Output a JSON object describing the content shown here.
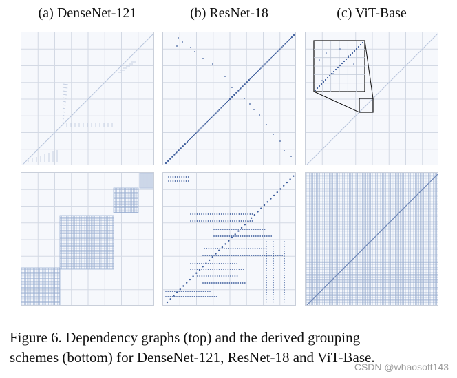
{
  "panels": {
    "a": {
      "title": "(a) DenseNet-121"
    },
    "b": {
      "title": "(b) ResNet-18"
    },
    "c": {
      "title": "(c) ViT-Base"
    }
  },
  "caption": {
    "line1": "Figure 6.  Dependency graphs (top) and the derived grouping",
    "line2": "schemes (bottom) for DenseNet-121, ResNet-18 and ViT-Base."
  },
  "watermark": "CSDN @whaosoft143",
  "colors": {
    "panel_bg": "#f6f8fc",
    "grid": "#d3d9e4",
    "dots": "#3a5a9a",
    "dense": "#8fa6cc"
  }
}
